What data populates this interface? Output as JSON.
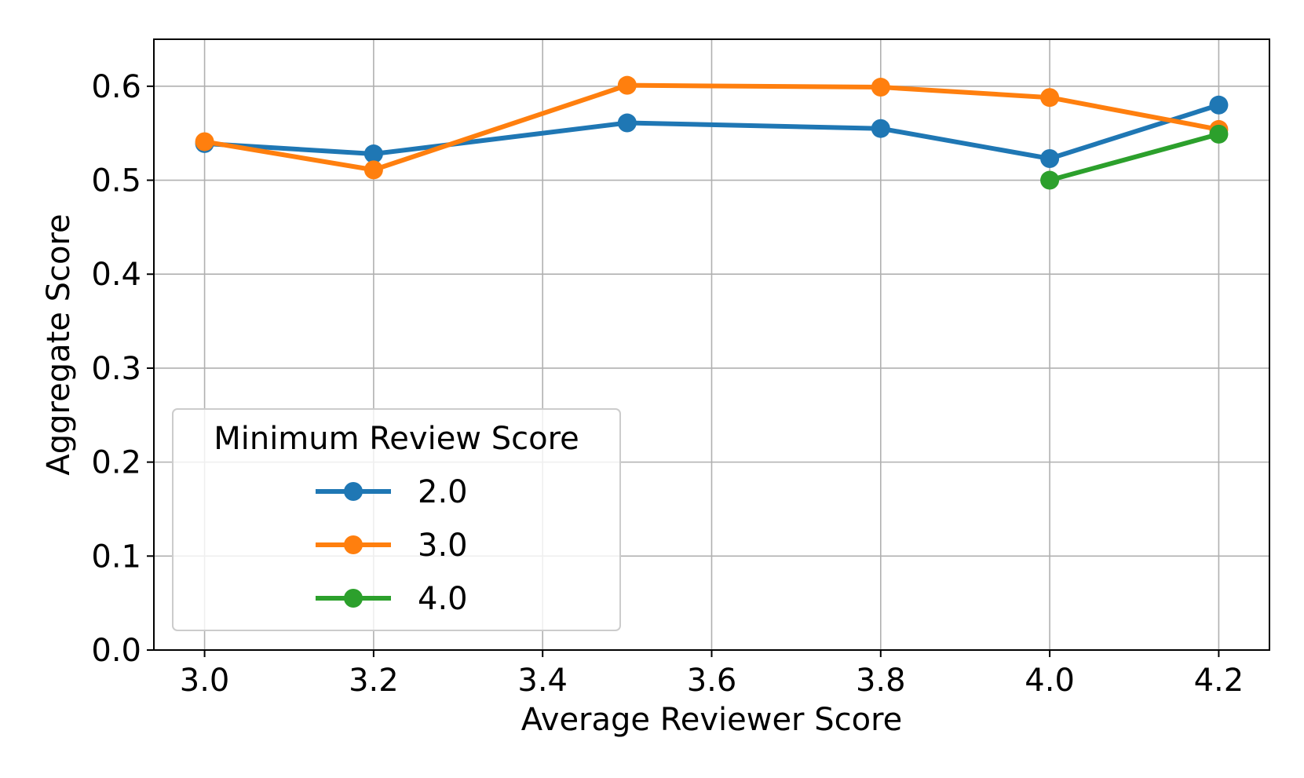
{
  "chart_data": {
    "type": "line",
    "xlabel": "Average Reviewer Score",
    "ylabel": "Aggregate Score",
    "xlim": [
      2.94,
      4.26
    ],
    "ylim": [
      0.0,
      0.65
    ],
    "xticks": [
      "3.0",
      "3.2",
      "3.4",
      "3.6",
      "3.8",
      "4.0",
      "4.2"
    ],
    "yticks": [
      "0.0",
      "0.1",
      "0.2",
      "0.3",
      "0.4",
      "0.5",
      "0.6"
    ],
    "grid": true,
    "legend": {
      "title": "Minimum Review Score",
      "placement": "lower-left"
    },
    "series": [
      {
        "name": "2.0",
        "color": "#1f77b4",
        "x": [
          3.0,
          3.2,
          3.5,
          3.8,
          4.0,
          4.2
        ],
        "y": [
          0.539,
          0.528,
          0.561,
          0.555,
          0.523,
          0.58
        ]
      },
      {
        "name": "3.0",
        "color": "#ff7f0e",
        "x": [
          3.0,
          3.2,
          3.5,
          3.8,
          4.0,
          4.2
        ],
        "y": [
          0.541,
          0.511,
          0.601,
          0.599,
          0.588,
          0.554
        ]
      },
      {
        "name": "4.0",
        "color": "#2ca02c",
        "x": [
          4.0,
          4.2
        ],
        "y": [
          0.5,
          0.549
        ]
      }
    ]
  }
}
